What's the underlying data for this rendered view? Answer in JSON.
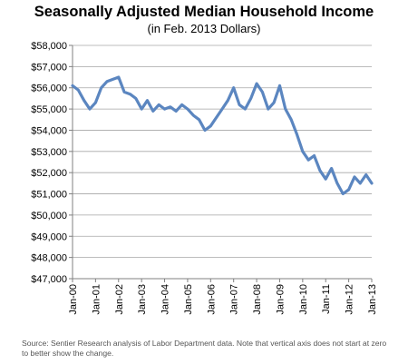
{
  "chart_data": {
    "type": "line",
    "title": "Seasonally Adjusted Median Household Income",
    "subtitle": "(in Feb. 2013 Dollars)",
    "xlabel": "",
    "ylabel": "",
    "ylim": [
      47000,
      58000
    ],
    "y_ticks": [
      "$47,000",
      "$48,000",
      "$49,000",
      "$50,000",
      "$51,000",
      "$52,000",
      "$53,000",
      "$54,000",
      "$55,000",
      "$56,000",
      "$57,000",
      "$58,000"
    ],
    "x_ticks": [
      "Jan-00",
      "Jan-01",
      "Jan-02",
      "Jan-03",
      "Jan-04",
      "Jan-05",
      "Jan-06",
      "Jan-07",
      "Jan-08",
      "Jan-09",
      "Jan-10",
      "Jan-11",
      "Jan-12",
      "Jan-13"
    ],
    "grid": true,
    "legend": "none",
    "line_color": "#5b86c0",
    "series": [
      {
        "x": [
          "Jan-00",
          "Apr-00",
          "Jul-00",
          "Oct-00",
          "Jan-01",
          "Apr-01",
          "Jul-01",
          "Oct-01",
          "Jan-02",
          "Apr-02",
          "Jul-02",
          "Oct-02",
          "Jan-03",
          "Apr-03",
          "Jul-03",
          "Oct-03",
          "Jan-04",
          "Apr-04",
          "Jul-04",
          "Oct-04",
          "Jan-05",
          "Apr-05",
          "Jul-05",
          "Oct-05",
          "Jan-06",
          "Apr-06",
          "Jul-06",
          "Oct-06",
          "Jan-07",
          "Apr-07",
          "Jul-07",
          "Oct-07",
          "Jan-08",
          "Apr-08",
          "Jul-08",
          "Oct-08",
          "Jan-09",
          "Apr-09",
          "Jul-09",
          "Oct-09",
          "Jan-10",
          "Apr-10",
          "Jul-10",
          "Oct-10",
          "Jan-11",
          "Apr-11",
          "Jul-11",
          "Oct-11",
          "Jan-12",
          "Apr-12",
          "Jul-12",
          "Oct-12",
          "Jan-13"
        ],
        "values": [
          56100,
          55900,
          55400,
          55000,
          55300,
          56000,
          56300,
          56400,
          56500,
          55800,
          55700,
          55500,
          55000,
          55400,
          54900,
          55200,
          55000,
          55100,
          54900,
          55200,
          55000,
          54700,
          54500,
          54000,
          54200,
          54600,
          55000,
          55400,
          56000,
          55200,
          55000,
          55500,
          56200,
          55800,
          55000,
          55300,
          56100,
          55000,
          54500,
          53800,
          53000,
          52600,
          52800,
          52100,
          51700,
          52200,
          51500,
          51000,
          51200,
          51800,
          51500,
          51900,
          51500
        ]
      }
    ],
    "source_note": "Source: Sentier Research analysis of Labor Department data. Note that vertical axis does not start at zero to better show the change."
  }
}
